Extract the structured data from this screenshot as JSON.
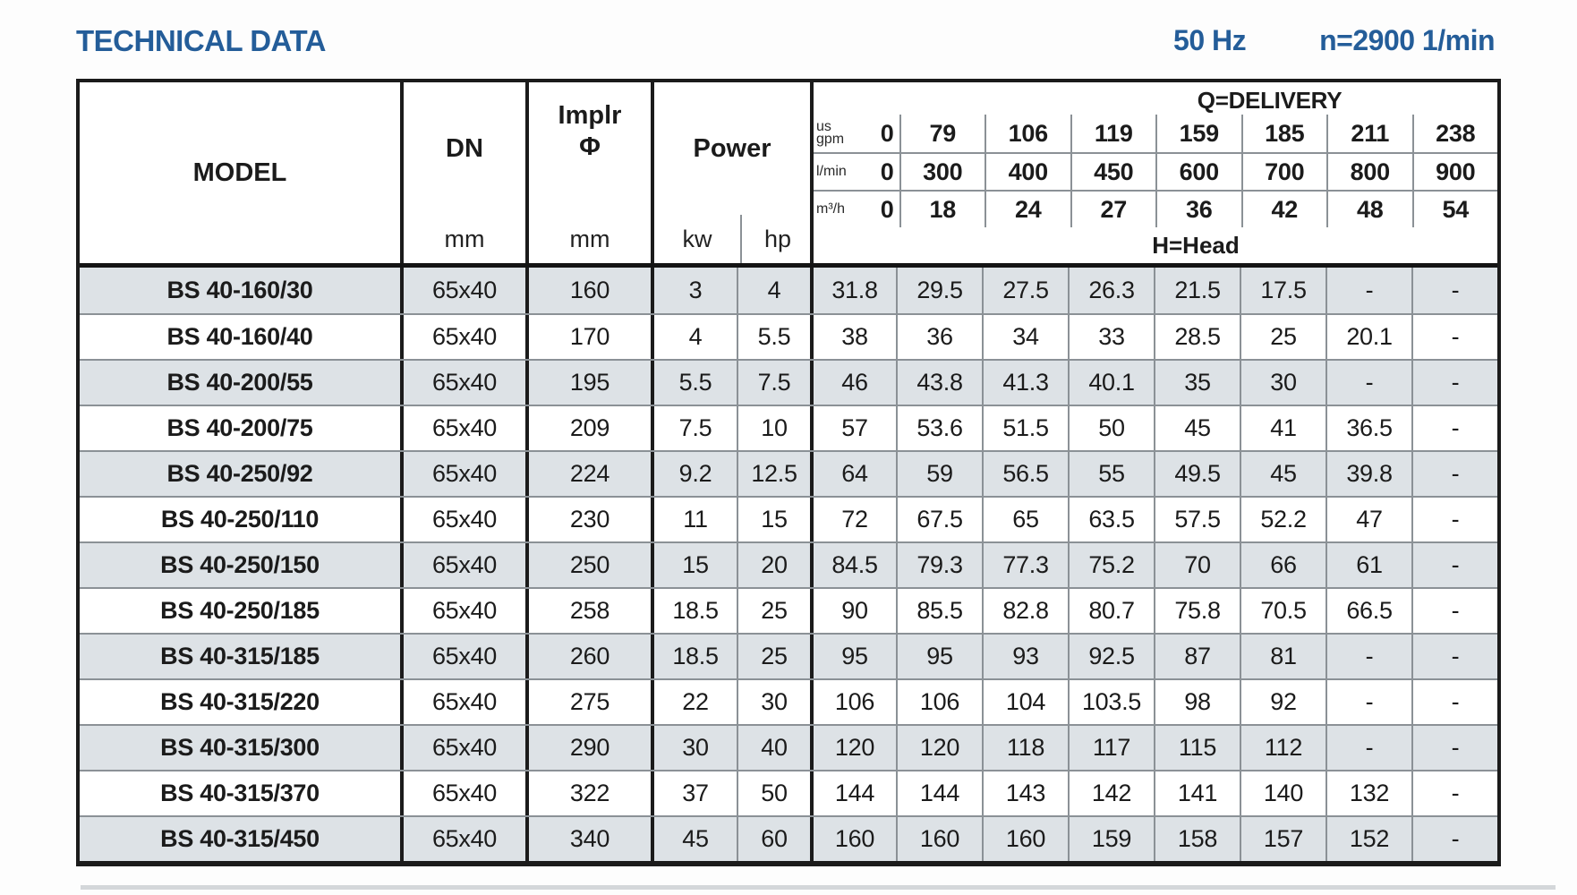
{
  "page": {
    "title": "TECHNICAL DATA",
    "frequency": "50 Hz",
    "speed": "n=2900 1/min"
  },
  "table": {
    "headers": {
      "model": "MODEL",
      "dn": "DN",
      "dn_unit": "mm",
      "implr_line1": "Implr",
      "implr_line2": "Φ",
      "implr_unit": "mm",
      "power": "Power",
      "power_kw": "kw",
      "power_hp": "hp",
      "delivery_title": "Q=DELIVERY",
      "head_label": "H=Head",
      "flow_rows": [
        {
          "unit": "us\ngpm",
          "values": [
            "0",
            "79",
            "106",
            "119",
            "159",
            "185",
            "211",
            "238"
          ]
        },
        {
          "unit": "l/min",
          "values": [
            "0",
            "300",
            "400",
            "450",
            "600",
            "700",
            "800",
            "900"
          ]
        },
        {
          "unit": "m³/h",
          "values": [
            "0",
            "18",
            "24",
            "27",
            "36",
            "42",
            "48",
            "54"
          ]
        }
      ]
    },
    "rows": [
      {
        "model": "BS 40-160/30",
        "dn": "65x40",
        "implr": "160",
        "kw": "3",
        "hp": "4",
        "head": [
          "31.8",
          "29.5",
          "27.5",
          "26.3",
          "21.5",
          "17.5",
          "-",
          "-"
        ]
      },
      {
        "model": "BS 40-160/40",
        "dn": "65x40",
        "implr": "170",
        "kw": "4",
        "hp": "5.5",
        "head": [
          "38",
          "36",
          "34",
          "33",
          "28.5",
          "25",
          "20.1",
          "-"
        ]
      },
      {
        "model": "BS 40-200/55",
        "dn": "65x40",
        "implr": "195",
        "kw": "5.5",
        "hp": "7.5",
        "head": [
          "46",
          "43.8",
          "41.3",
          "40.1",
          "35",
          "30",
          "-",
          "-"
        ]
      },
      {
        "model": "BS 40-200/75",
        "dn": "65x40",
        "implr": "209",
        "kw": "7.5",
        "hp": "10",
        "head": [
          "57",
          "53.6",
          "51.5",
          "50",
          "45",
          "41",
          "36.5",
          "-"
        ]
      },
      {
        "model": "BS 40-250/92",
        "dn": "65x40",
        "implr": "224",
        "kw": "9.2",
        "hp": "12.5",
        "head": [
          "64",
          "59",
          "56.5",
          "55",
          "49.5",
          "45",
          "39.8",
          "-"
        ]
      },
      {
        "model": "BS 40-250/110",
        "dn": "65x40",
        "implr": "230",
        "kw": "11",
        "hp": "15",
        "head": [
          "72",
          "67.5",
          "65",
          "63.5",
          "57.5",
          "52.2",
          "47",
          "-"
        ]
      },
      {
        "model": "BS 40-250/150",
        "dn": "65x40",
        "implr": "250",
        "kw": "15",
        "hp": "20",
        "head": [
          "84.5",
          "79.3",
          "77.3",
          "75.2",
          "70",
          "66",
          "61",
          "-"
        ]
      },
      {
        "model": "BS 40-250/185",
        "dn": "65x40",
        "implr": "258",
        "kw": "18.5",
        "hp": "25",
        "head": [
          "90",
          "85.5",
          "82.8",
          "80.7",
          "75.8",
          "70.5",
          "66.5",
          "-"
        ]
      },
      {
        "model": "BS 40-315/185",
        "dn": "65x40",
        "implr": "260",
        "kw": "18.5",
        "hp": "25",
        "head": [
          "95",
          "95",
          "93",
          "92.5",
          "87",
          "81",
          "-",
          "-"
        ]
      },
      {
        "model": "BS 40-315/220",
        "dn": "65x40",
        "implr": "275",
        "kw": "22",
        "hp": "30",
        "head": [
          "106",
          "106",
          "104",
          "103.5",
          "98",
          "92",
          "-",
          "-"
        ]
      },
      {
        "model": "BS 40-315/300",
        "dn": "65x40",
        "implr": "290",
        "kw": "30",
        "hp": "40",
        "head": [
          "120",
          "120",
          "118",
          "117",
          "115",
          "112",
          "-",
          "-"
        ]
      },
      {
        "model": "BS 40-315/370",
        "dn": "65x40",
        "implr": "322",
        "kw": "37",
        "hp": "50",
        "head": [
          "144",
          "144",
          "143",
          "142",
          "141",
          "140",
          "132",
          "-"
        ]
      },
      {
        "model": "BS 40-315/450",
        "dn": "65x40",
        "implr": "340",
        "kw": "45",
        "hp": "60",
        "head": [
          "160",
          "160",
          "160",
          "159",
          "158",
          "157",
          "152",
          "-"
        ]
      }
    ],
    "colors": {
      "accent_blue": "#245d99",
      "row_shade": "#dde2e6",
      "border_dark": "#1b1b1b",
      "line_gray": "#8b9196"
    }
  }
}
